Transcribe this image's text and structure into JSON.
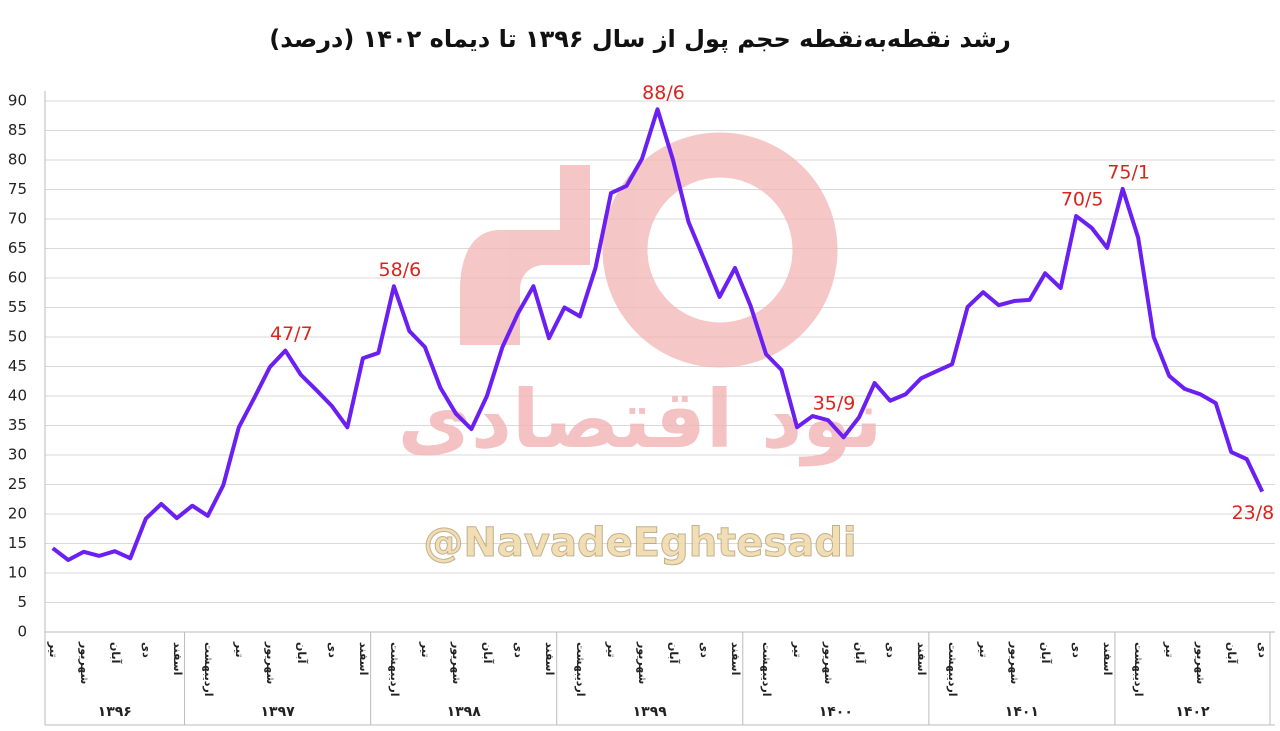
{
  "chart_data": {
    "type": "line",
    "title": "رشد نقطه‌به‌نقطه حجم پول از سال ۱۳۹۶ تا دیماه ۱۴۰۲ (درصد)",
    "watermark": "@NavadeEghtesadi",
    "watermark_logo": "نود اقتصادی",
    "categories": [
      "تیر",
      null,
      "شهریور",
      null,
      "آبان",
      null,
      "دی",
      null,
      "اسفند",
      null,
      "اردیبهشت",
      null,
      "تیر",
      null,
      "شهریور",
      null,
      "آبان",
      null,
      "دی",
      null,
      "اسفند",
      null,
      "اردیبهشت",
      null,
      "تیر",
      null,
      "شهریور",
      null,
      "آبان",
      null,
      "دی",
      null,
      "اسفند",
      null,
      "اردیبهشت",
      null,
      "تیر",
      null,
      "شهریور",
      null,
      "آبان",
      null,
      "دی",
      null,
      "اسفند",
      null,
      "اردیبهشت",
      null,
      "تیر",
      null,
      "شهریور",
      null,
      "آبان",
      null,
      "دی",
      null,
      "اسفند",
      null,
      "اردیبهشت",
      null,
      "تیر",
      null,
      "شهریور",
      null,
      "آبان",
      null,
      "دی",
      null,
      "اسفند",
      null,
      "اردیبهشت",
      null,
      "تیر",
      null,
      "شهریور",
      null,
      "آبان",
      null,
      "دی"
    ],
    "x_groups": [
      {
        "label": "۱۳۹۶",
        "months": 9
      },
      {
        "label": "۱۳۹۷",
        "months": 12
      },
      {
        "label": "۱۳۹۸",
        "months": 12
      },
      {
        "label": "۱۳۹۹",
        "months": 12
      },
      {
        "label": "۱۴۰۰",
        "months": 12
      },
      {
        "label": "۱۴۰۱",
        "months": 12
      },
      {
        "label": "۱۴۰۲",
        "months": 10
      }
    ],
    "series": [
      {
        "name": "رشد حجم پول",
        "color": "#6b1ff2",
        "values": [
          14.2,
          12.2,
          13.6,
          12.9,
          13.7,
          12.5,
          19.2,
          21.7,
          19.3,
          21.4,
          19.7,
          24.9,
          34.7,
          39.7,
          44.9,
          47.7,
          43.6,
          41,
          38.3,
          34.7,
          46.4,
          47.3,
          58.6,
          51,
          48.3,
          41.4,
          37,
          34.4,
          40,
          48.3,
          54,
          58.6,
          49.8,
          55,
          53.5,
          61.7,
          74.4,
          75.6,
          80.2,
          88.6,
          80,
          69.5,
          63.2,
          56.8,
          61.7,
          55.3,
          47.1,
          44.4,
          34.7,
          36.6,
          35.9,
          33,
          36.4,
          42.2,
          39.2,
          40.3,
          43,
          44.2,
          45.4,
          55.1,
          57.6,
          55.4,
          56.1,
          56.3,
          60.8,
          58.3,
          70.5,
          68.5,
          65.1,
          75.1,
          66.8,
          50,
          43.4,
          41.2,
          40.3,
          38.8,
          30.5,
          29.3,
          23.8
        ],
        "value_labels": [
          null,
          null,
          null,
          null,
          null,
          null,
          null,
          null,
          null,
          null,
          null,
          null,
          null,
          null,
          null,
          "47/7",
          null,
          null,
          null,
          null,
          null,
          null,
          "58/6",
          null,
          null,
          null,
          null,
          null,
          null,
          null,
          null,
          null,
          null,
          null,
          null,
          null,
          null,
          null,
          null,
          "88/6",
          null,
          null,
          null,
          null,
          null,
          null,
          null,
          null,
          null,
          null,
          "35/9",
          null,
          null,
          null,
          null,
          null,
          null,
          null,
          null,
          null,
          null,
          null,
          null,
          null,
          null,
          null,
          "70/5",
          null,
          null,
          "75/1",
          null,
          null,
          null,
          null,
          null,
          null,
          null,
          null,
          "23/8"
        ]
      }
    ],
    "value_label_color": "#d9251d",
    "ylim": [
      0,
      90
    ],
    "yticks": [
      0,
      5,
      10,
      15,
      20,
      25,
      30,
      35,
      40,
      45,
      50,
      55,
      60,
      65,
      70,
      75,
      80,
      85,
      90
    ],
    "grid": true
  }
}
